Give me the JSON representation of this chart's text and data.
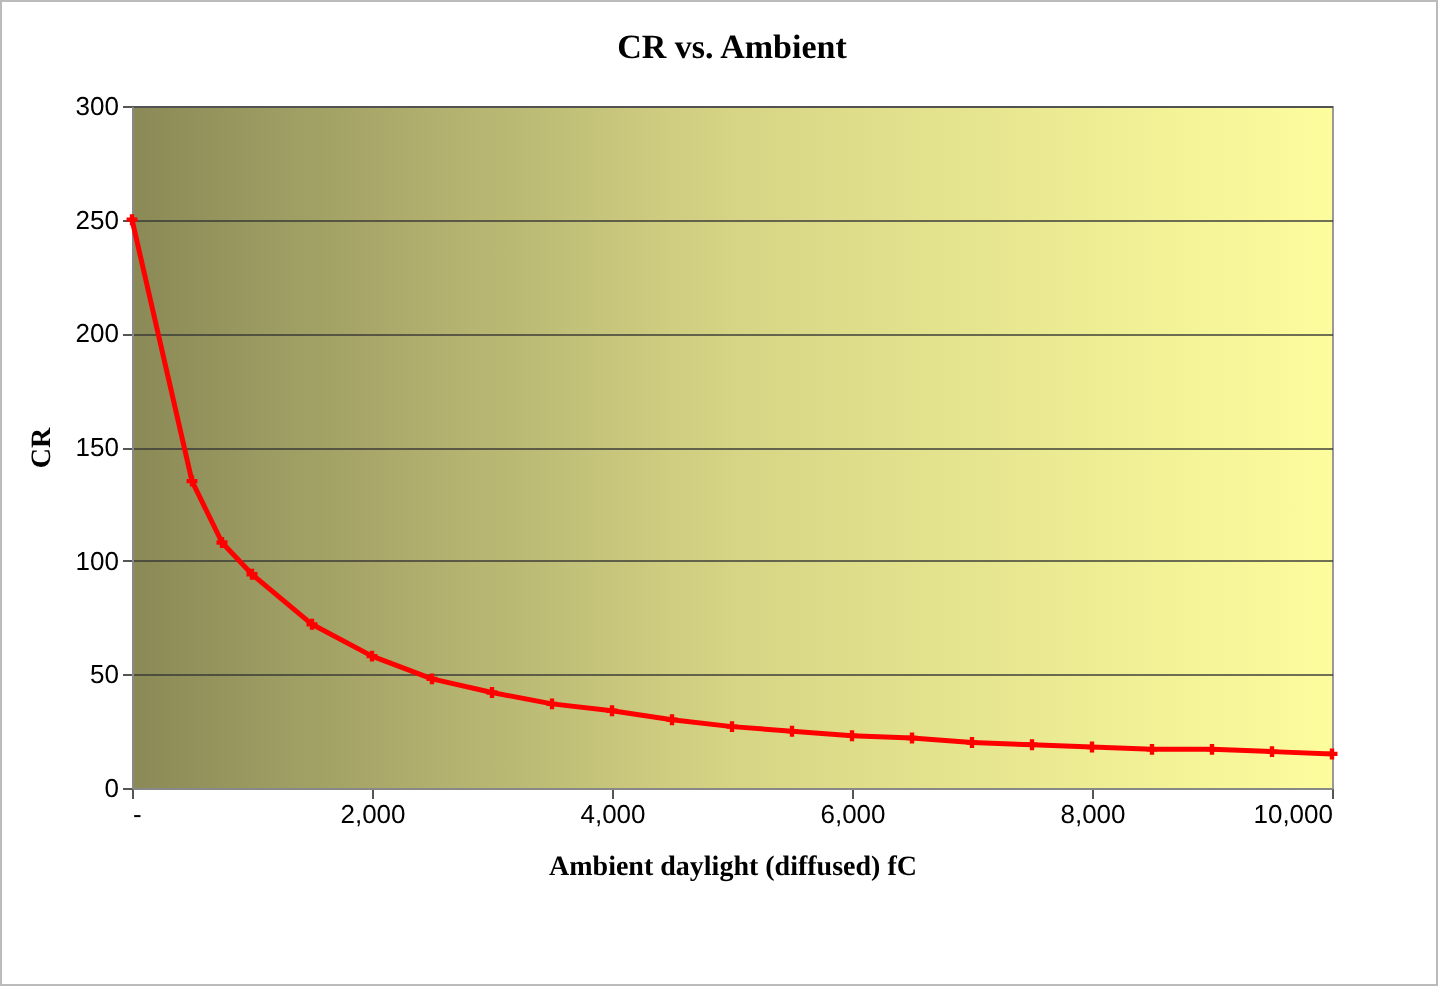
{
  "chart_data": {
    "type": "line",
    "title": "CR vs. Ambient",
    "xlabel": "Ambient daylight (diffused)  fC",
    "ylabel": "CR",
    "x": [
      0,
      500,
      750,
      1000,
      1500,
      2000,
      2500,
      3000,
      3500,
      4000,
      4500,
      5000,
      5500,
      6000,
      6500,
      7000,
      7500,
      8000,
      8500,
      9000,
      9500,
      10000
    ],
    "series": [
      {
        "color": "#ff0000",
        "values": [
          250,
          135,
          108,
          94,
          72,
          58,
          48,
          42,
          37,
          34,
          30,
          27,
          25,
          23,
          22,
          20,
          19,
          18,
          17,
          17,
          16,
          15
        ]
      }
    ],
    "xlim": [
      0,
      10000
    ],
    "xticks": [
      {
        "value": 0,
        "label": "-"
      },
      {
        "value": 2000,
        "label": "2,000"
      },
      {
        "value": 4000,
        "label": "4,000"
      },
      {
        "value": 6000,
        "label": "6,000"
      },
      {
        "value": 8000,
        "label": "8,000"
      },
      {
        "value": 10000,
        "label": "10,000"
      }
    ],
    "ylim": [
      0,
      300
    ],
    "yticks": [
      0,
      50,
      100,
      150,
      200,
      250,
      300
    ],
    "grid": "y",
    "marker": "cross",
    "line_style": "solid"
  }
}
